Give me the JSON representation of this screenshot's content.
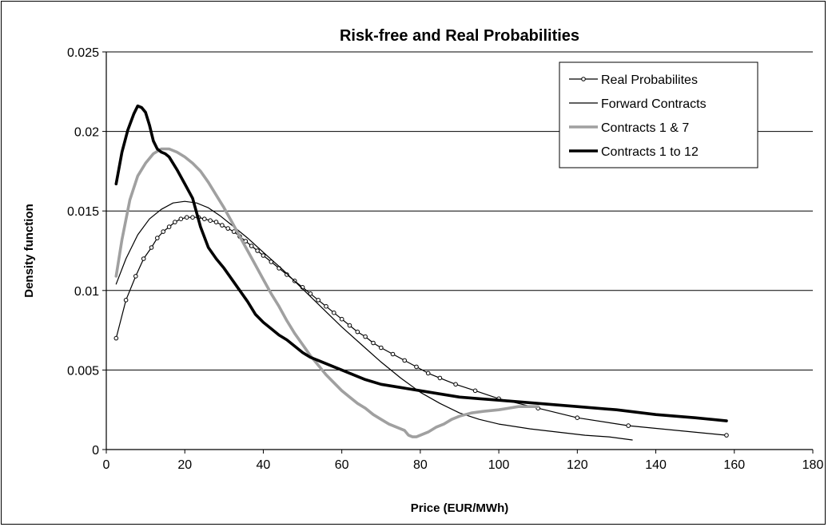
{
  "chart_data": {
    "type": "line",
    "title": "Risk-free and Real Probabilities",
    "xlabel": "Price (EUR/MWh)",
    "ylabel": "Density function",
    "xlim": [
      0,
      180
    ],
    "ylim": [
      0,
      0.025
    ],
    "xticks": [
      "0",
      "20",
      "40",
      "60",
      "80",
      "100",
      "120",
      "140",
      "160",
      "180"
    ],
    "yticks": [
      "0",
      "0.005",
      "0.01",
      "0.015",
      "0.02",
      "0.025"
    ],
    "grid": "horizontal",
    "legend_position": "top-right",
    "series": [
      {
        "name": "Real Probabilites",
        "color": "#000000",
        "style": "thin-line-with-circle-markers",
        "points": [
          [
            2.5,
            0.007
          ],
          [
            5,
            0.0094
          ],
          [
            7.5,
            0.0109
          ],
          [
            9.5,
            0.012
          ],
          [
            11.5,
            0.0127
          ],
          [
            13,
            0.0133
          ],
          [
            14.5,
            0.0137
          ],
          [
            16,
            0.014
          ],
          [
            17.5,
            0.0143
          ],
          [
            19,
            0.0145
          ],
          [
            20.5,
            0.0146
          ],
          [
            22,
            0.0146
          ],
          [
            23.5,
            0.0146
          ],
          [
            25,
            0.0145
          ],
          [
            26.5,
            0.0144
          ],
          [
            28,
            0.0143
          ],
          [
            29.5,
            0.0141
          ],
          [
            31,
            0.0139
          ],
          [
            32.5,
            0.0137
          ],
          [
            34,
            0.0134
          ],
          [
            35.5,
            0.0131
          ],
          [
            37,
            0.0128
          ],
          [
            38.5,
            0.0125
          ],
          [
            40,
            0.0122
          ],
          [
            42,
            0.0118
          ],
          [
            44,
            0.0114
          ],
          [
            46,
            0.011
          ],
          [
            48,
            0.0106
          ],
          [
            50,
            0.0102
          ],
          [
            52,
            0.0098
          ],
          [
            54,
            0.0094
          ],
          [
            56,
            0.009
          ],
          [
            58,
            0.0086
          ],
          [
            60,
            0.0082
          ],
          [
            62,
            0.0078
          ],
          [
            64,
            0.0074
          ],
          [
            66,
            0.0071
          ],
          [
            68,
            0.0067
          ],
          [
            70,
            0.0064
          ],
          [
            73,
            0.006
          ],
          [
            76,
            0.0056
          ],
          [
            79,
            0.0052
          ],
          [
            82,
            0.0048
          ],
          [
            85,
            0.0045
          ],
          [
            89,
            0.0041
          ],
          [
            94,
            0.0037
          ],
          [
            100,
            0.0032
          ],
          [
            110,
            0.0026
          ],
          [
            120,
            0.002
          ],
          [
            133,
            0.0015
          ],
          [
            158,
            0.0009
          ]
        ]
      },
      {
        "name": "Forward Contracts",
        "color": "#000000",
        "style": "thin-line",
        "points": [
          [
            2.5,
            0.0104
          ],
          [
            5,
            0.012
          ],
          [
            8,
            0.0135
          ],
          [
            11,
            0.0145
          ],
          [
            14,
            0.0151
          ],
          [
            17,
            0.0155
          ],
          [
            20,
            0.0156
          ],
          [
            23,
            0.0155
          ],
          [
            26,
            0.0152
          ],
          [
            29,
            0.0147
          ],
          [
            32,
            0.0141
          ],
          [
            36,
            0.0133
          ],
          [
            40,
            0.0124
          ],
          [
            45,
            0.0113
          ],
          [
            50,
            0.0101
          ],
          [
            55,
            0.0089
          ],
          [
            60,
            0.0077
          ],
          [
            65,
            0.0066
          ],
          [
            70,
            0.0055
          ],
          [
            75,
            0.0045
          ],
          [
            80,
            0.0036
          ],
          [
            85,
            0.0029
          ],
          [
            90,
            0.0023
          ],
          [
            95,
            0.0019
          ],
          [
            100,
            0.0016
          ],
          [
            108,
            0.0013
          ],
          [
            115,
            0.0011
          ],
          [
            122,
            0.0009
          ],
          [
            128,
            0.0008
          ],
          [
            134,
            0.0006
          ]
        ]
      },
      {
        "name": "Contracts 1 & 7",
        "color": "#a0a0a0",
        "style": "thick-line",
        "points": [
          [
            2.5,
            0.0109
          ],
          [
            4,
            0.0132
          ],
          [
            6,
            0.0157
          ],
          [
            8,
            0.0172
          ],
          [
            10,
            0.018
          ],
          [
            12,
            0.0186
          ],
          [
            14,
            0.0189
          ],
          [
            16,
            0.0189
          ],
          [
            18,
            0.0187
          ],
          [
            20,
            0.0184
          ],
          [
            22,
            0.018
          ],
          [
            24,
            0.0175
          ],
          [
            26,
            0.0168
          ],
          [
            28,
            0.016
          ],
          [
            30,
            0.0152
          ],
          [
            32,
            0.0143
          ],
          [
            34,
            0.0134
          ],
          [
            36,
            0.0125
          ],
          [
            38,
            0.0116
          ],
          [
            40,
            0.0107
          ],
          [
            42,
            0.0098
          ],
          [
            44,
            0.009
          ],
          [
            46,
            0.0081
          ],
          [
            48,
            0.0073
          ],
          [
            50,
            0.0066
          ],
          [
            52,
            0.0059
          ],
          [
            54,
            0.0053
          ],
          [
            56,
            0.0047
          ],
          [
            58,
            0.0042
          ],
          [
            60,
            0.0037
          ],
          [
            62,
            0.0033
          ],
          [
            64,
            0.0029
          ],
          [
            66,
            0.0026
          ],
          [
            68,
            0.0022
          ],
          [
            70,
            0.0019
          ],
          [
            72,
            0.0016
          ],
          [
            74,
            0.0014
          ],
          [
            76,
            0.0012
          ],
          [
            77,
            0.0009
          ],
          [
            78,
            0.0008
          ],
          [
            79,
            0.0008
          ],
          [
            80,
            0.0009
          ],
          [
            82,
            0.0011
          ],
          [
            84,
            0.0014
          ],
          [
            86,
            0.0016
          ],
          [
            88,
            0.0019
          ],
          [
            90,
            0.0021
          ],
          [
            93,
            0.0023
          ],
          [
            96,
            0.0024
          ],
          [
            100,
            0.0025
          ],
          [
            105,
            0.0027
          ],
          [
            110,
            0.0027
          ]
        ]
      },
      {
        "name": "Contracts 1 to 12",
        "color": "#000000",
        "style": "thick-line",
        "points": [
          [
            2.5,
            0.0167
          ],
          [
            4,
            0.0187
          ],
          [
            5.5,
            0.0201
          ],
          [
            7,
            0.0211
          ],
          [
            8,
            0.0216
          ],
          [
            9,
            0.0215
          ],
          [
            10,
            0.0212
          ],
          [
            11,
            0.0204
          ],
          [
            12,
            0.0194
          ],
          [
            13,
            0.0189
          ],
          [
            14,
            0.0187
          ],
          [
            15,
            0.0186
          ],
          [
            16,
            0.0184
          ],
          [
            18,
            0.0176
          ],
          [
            20,
            0.0167
          ],
          [
            22,
            0.0158
          ],
          [
            24,
            0.014
          ],
          [
            26,
            0.0127
          ],
          [
            28,
            0.012
          ],
          [
            30,
            0.0114
          ],
          [
            32,
            0.0107
          ],
          [
            34,
            0.01
          ],
          [
            36,
            0.0093
          ],
          [
            38,
            0.0085
          ],
          [
            40,
            0.008
          ],
          [
            42,
            0.0076
          ],
          [
            44,
            0.0072
          ],
          [
            46,
            0.0069
          ],
          [
            48,
            0.0065
          ],
          [
            50,
            0.0061
          ],
          [
            52,
            0.0058
          ],
          [
            54,
            0.0056
          ],
          [
            56,
            0.0054
          ],
          [
            58,
            0.0052
          ],
          [
            60,
            0.005
          ],
          [
            63,
            0.0047
          ],
          [
            66,
            0.0044
          ],
          [
            70,
            0.0041
          ],
          [
            75,
            0.0039
          ],
          [
            80,
            0.0037
          ],
          [
            85,
            0.0035
          ],
          [
            90,
            0.0033
          ],
          [
            95,
            0.0032
          ],
          [
            100,
            0.0031
          ],
          [
            110,
            0.0029
          ],
          [
            120,
            0.0027
          ],
          [
            130,
            0.0025
          ],
          [
            140,
            0.0022
          ],
          [
            150,
            0.002
          ],
          [
            158,
            0.0018
          ]
        ]
      }
    ]
  }
}
